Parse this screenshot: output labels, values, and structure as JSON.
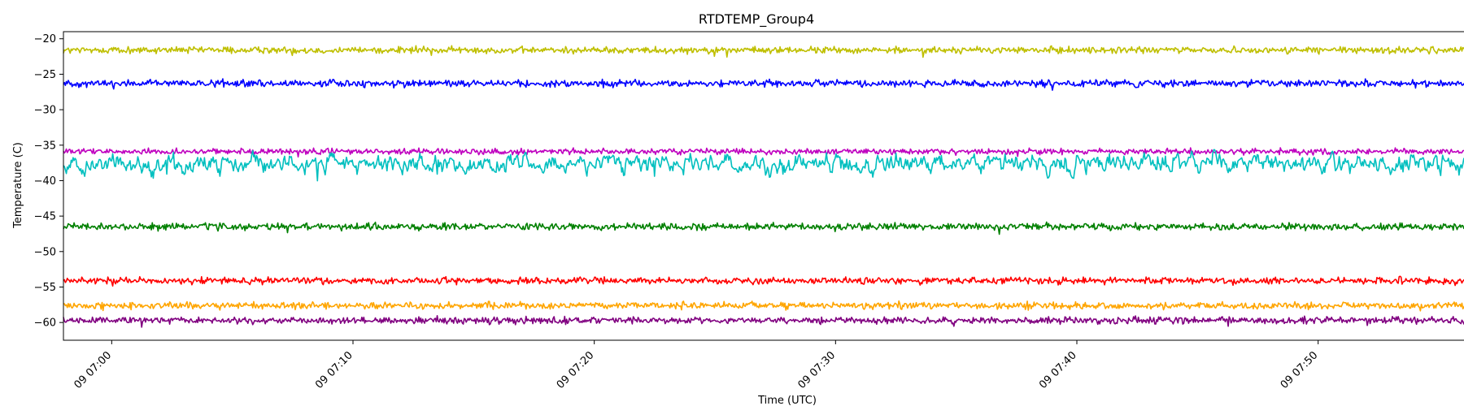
{
  "chart_data": {
    "type": "line",
    "title": "RTDTEMP_Group4",
    "xlabel": "Time (UTC)",
    "ylabel": "Temperature (C)",
    "xlim": [
      "09 06:58",
      "09 07:58"
    ],
    "ylim": [
      -62.5,
      -19.0
    ],
    "x_ticks": [
      "09 07:00",
      "09 07:10",
      "09 07:20",
      "09 07:30",
      "09 07:40",
      "09 07:50"
    ],
    "y_ticks": [
      -20,
      -25,
      -30,
      -35,
      -40,
      -45,
      -50,
      -55,
      -60
    ],
    "grid": false,
    "legend": "none",
    "series": [
      {
        "color": "#bfbf00",
        "x_range": [
          "09 06:58",
          "09 07:58"
        ],
        "mean": -21.6,
        "noise_amplitude": 0.35
      },
      {
        "color": "#0000ff",
        "x_range": [
          "09 06:58",
          "09 07:58"
        ],
        "mean": -26.3,
        "noise_amplitude": 0.35
      },
      {
        "color": "#bf00bf",
        "x_range": [
          "09 06:58",
          "09 07:58"
        ],
        "mean": -35.9,
        "noise_amplitude": 0.3
      },
      {
        "color": "#00bfbf",
        "x_range": [
          "09 06:58",
          "09 07:58"
        ],
        "mean": -37.6,
        "noise_amplitude": 1.3
      },
      {
        "color": "#008000",
        "x_range": [
          "09 06:58",
          "09 07:58"
        ],
        "mean": -46.5,
        "noise_amplitude": 0.35
      },
      {
        "color": "#ff0000",
        "x_range": [
          "09 06:58",
          "09 07:58"
        ],
        "mean": -54.1,
        "noise_amplitude": 0.35
      },
      {
        "color": "#ffa500",
        "x_range": [
          "09 06:58",
          "09 07:58"
        ],
        "mean": -57.6,
        "noise_amplitude": 0.35
      },
      {
        "color": "#800080",
        "x_range": [
          "09 06:58",
          "09 07:58"
        ],
        "mean": -59.7,
        "noise_amplitude": 0.35
      }
    ]
  }
}
